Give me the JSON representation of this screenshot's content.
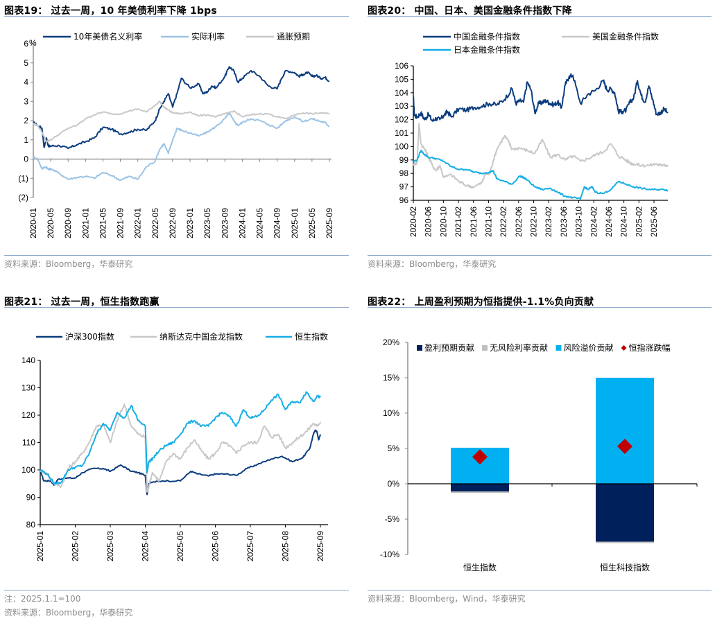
{
  "colors": {
    "navy": "#0b3c7d",
    "lightblue": "#9cc3e6",
    "gray": "#c8c8c8",
    "cyan": "#16aee6",
    "darknavy": "#00205b",
    "red": "#c00000",
    "rule": "#8eaacc"
  },
  "panels": [
    {
      "title": "图表19： 过去一周，10 年美债利率下降 1bps",
      "source": "资料来源：Bloomberg，华泰研究"
    },
    {
      "title": "图表20： 中国、日本、美国金融条件指数下降",
      "source": "资料来源：Bloomberg，华泰研究"
    },
    {
      "title": "图表21： 过去一周，恒生指数跑赢",
      "note": "注：2025.1.1=100",
      "source": "资料来源：Bloomberg，华泰研究"
    },
    {
      "title": "图表22： 上周盈利预期为恒指提供-1.1%负向贡献",
      "source": "资料来源：Bloomberg，Wind，华泰研究"
    }
  ],
  "chart_data": [
    {
      "type": "line",
      "title": "过去一周，10 年美债利率下降 1bps",
      "ylabel": "%",
      "ylim": [
        -2,
        6
      ],
      "yticks": [
        6,
        5,
        4,
        3,
        2,
        1,
        0,
        -1,
        -2
      ],
      "ytick_labels": [
        "6",
        "5",
        "4",
        "3",
        "2",
        "1",
        "0",
        "(1)",
        "(2)"
      ],
      "xticks": [
        "2020-01",
        "2020-05",
        "2020-09",
        "2021-01",
        "2021-05",
        "2021-09",
        "2022-01",
        "2022-05",
        "2022-09",
        "2023-01",
        "2023-05",
        "2023-09",
        "2024-01",
        "2024-05",
        "2024-09",
        "2025-01",
        "2025-05",
        "2025-09"
      ],
      "xrange_months": [
        0,
        68
      ],
      "legend_position": "top",
      "series": [
        {
          "name": "10年美债名义利率",
          "color": "#0b3c7d",
          "x": [
            0,
            1,
            2,
            2.5,
            3,
            3.5,
            4,
            6,
            8,
            10,
            12,
            14,
            16,
            18,
            20,
            22,
            24,
            26,
            28,
            29,
            30,
            31,
            32,
            33,
            34,
            36,
            38,
            39,
            40,
            41,
            42,
            44,
            45,
            46,
            47,
            48,
            50,
            52,
            54,
            56,
            57,
            58,
            60,
            61,
            62,
            63,
            64,
            65,
            66,
            67,
            68
          ],
          "y": [
            1.9,
            1.75,
            1.6,
            0.6,
            1.1,
            0.65,
            0.68,
            0.7,
            0.55,
            0.75,
            0.9,
            1.1,
            1.65,
            1.55,
            1.3,
            1.4,
            1.55,
            1.5,
            2.0,
            2.6,
            3.0,
            3.4,
            2.7,
            3.4,
            4.2,
            3.7,
            3.9,
            3.4,
            3.5,
            3.8,
            3.7,
            4.3,
            4.8,
            4.6,
            4.0,
            4.2,
            4.6,
            4.3,
            3.8,
            3.65,
            4.2,
            4.6,
            4.5,
            4.3,
            4.4,
            4.5,
            4.3,
            4.35,
            4.2,
            4.25,
            4.05
          ]
        },
        {
          "name": "实际利率",
          "color": "#9cc3e6",
          "x": [
            0,
            1,
            2,
            3,
            3.5,
            4,
            6,
            8,
            10,
            12,
            14,
            16,
            18,
            20,
            22,
            24,
            26,
            28,
            29,
            30,
            31,
            32,
            33,
            34,
            36,
            38,
            40,
            42,
            44,
            45,
            46,
            47,
            48,
            50,
            52,
            54,
            56,
            58,
            60,
            62,
            64,
            66,
            67,
            68
          ],
          "y": [
            0.1,
            0.0,
            -0.5,
            -0.4,
            -0.55,
            -0.5,
            -0.75,
            -1.05,
            -0.95,
            -0.9,
            -1.0,
            -0.7,
            -0.85,
            -1.1,
            -0.9,
            -1.05,
            -0.4,
            -0.1,
            0.5,
            0.8,
            0.3,
            1.0,
            1.6,
            1.5,
            1.35,
            1.2,
            1.4,
            1.7,
            2.1,
            2.4,
            2.0,
            1.75,
            1.9,
            2.1,
            2.0,
            1.8,
            1.6,
            2.0,
            2.2,
            1.95,
            2.1,
            1.95,
            1.9,
            1.7
          ]
        },
        {
          "name": "通胀预期",
          "color": "#c8c8c8",
          "x": [
            0,
            1,
            2,
            3,
            4,
            6,
            8,
            10,
            12,
            14,
            16,
            18,
            20,
            22,
            24,
            26,
            28,
            29,
            30,
            31,
            32,
            34,
            36,
            38,
            40,
            42,
            44,
            46,
            48,
            50,
            52,
            54,
            56,
            58,
            60,
            62,
            64,
            66,
            68
          ],
          "y": [
            1.85,
            1.75,
            1.4,
            0.9,
            1.0,
            1.3,
            1.6,
            1.75,
            2.1,
            2.3,
            2.45,
            2.35,
            2.35,
            2.5,
            2.6,
            2.45,
            2.8,
            3.0,
            2.7,
            2.55,
            2.4,
            2.35,
            2.45,
            2.25,
            2.3,
            2.2,
            2.35,
            2.5,
            2.2,
            2.3,
            2.35,
            2.35,
            2.2,
            2.1,
            2.3,
            2.4,
            2.35,
            2.4,
            2.35
          ]
        }
      ]
    },
    {
      "type": "line",
      "title": "中国、日本、美国金融条件指数下降",
      "ylim": [
        96,
        106
      ],
      "yticks": [
        106,
        105,
        104,
        103,
        102,
        101,
        100,
        99,
        98,
        97,
        96
      ],
      "xticks": [
        "2020-02",
        "2020-06",
        "2020-10",
        "2021-02",
        "2021-06",
        "2021-10",
        "2022-02",
        "2022-06",
        "2022-10",
        "2023-02",
        "2023-06",
        "2023-10",
        "2024-02",
        "2024-06",
        "2024-10",
        "2025-02",
        "2025-06"
      ],
      "xrange_months": [
        0,
        67
      ],
      "legend_position": "top",
      "series": [
        {
          "name": "中国金融条件指数",
          "color": "#0b3c7d",
          "x": [
            0,
            0.3,
            1,
            2,
            3,
            4,
            5,
            6,
            7,
            8,
            9,
            10,
            12,
            14,
            16,
            18,
            20,
            22,
            24,
            26,
            27,
            28,
            29,
            30,
            31,
            32,
            33,
            34,
            35,
            36,
            37,
            38,
            39,
            40,
            41,
            42,
            44,
            46,
            48,
            50,
            51,
            52,
            53,
            54,
            55,
            56,
            57,
            58,
            59,
            60,
            61,
            62,
            63,
            64,
            65,
            66,
            67
          ],
          "y": [
            103.7,
            102.3,
            102.2,
            102.5,
            102.0,
            102.4,
            101.9,
            102.1,
            102.0,
            102.3,
            102.6,
            102.2,
            102.8,
            102.7,
            102.9,
            103.0,
            103.2,
            103.1,
            103.5,
            104.3,
            103.2,
            103.4,
            103.3,
            104.8,
            104.2,
            102.5,
            103.2,
            103.3,
            103.4,
            103.2,
            103.1,
            103.3,
            102.9,
            104.6,
            105.2,
            105.3,
            103.2,
            103.9,
            104.2,
            104.9,
            104.2,
            104.3,
            104.0,
            102.6,
            102.6,
            102.7,
            103.3,
            103.6,
            104.9,
            103.8,
            103.3,
            104.5,
            103.5,
            102.4,
            102.5,
            102.8,
            102.5
          ]
        },
        {
          "name": "美国金融条件指数",
          "color": "#c8c8c8",
          "x": [
            0,
            1,
            1.5,
            2,
            3,
            4,
            5,
            6,
            7,
            8,
            10,
            12,
            14,
            16,
            18,
            19,
            20,
            21,
            22,
            24,
            25,
            26,
            28,
            30,
            32,
            34,
            36,
            38,
            40,
            42,
            44,
            46,
            48,
            50,
            52,
            54,
            56,
            57,
            58,
            60,
            62,
            64,
            65,
            66,
            67
          ],
          "y": [
            98.7,
            98.8,
            101.7,
            100.2,
            99.8,
            99.2,
            98.6,
            98.2,
            98.6,
            97.7,
            97.9,
            97.4,
            97.1,
            97.0,
            97.3,
            98.0,
            97.9,
            98.9,
            99.8,
            100.8,
            100.4,
            99.8,
            99.9,
            99.7,
            99.5,
            100.5,
            99.2,
            99.4,
            99.0,
            99.3,
            98.9,
            99.1,
            99.4,
            99.6,
            100.2,
            99.3,
            99.0,
            98.8,
            98.7,
            98.6,
            98.6,
            98.7,
            98.6,
            98.7,
            98.5
          ]
        },
        {
          "name": "日本金融条件指数",
          "color": "#16aee6",
          "x": [
            0,
            1,
            2,
            3,
            4,
            6,
            8,
            10,
            12,
            14,
            16,
            18,
            20,
            21,
            22,
            24,
            26,
            28,
            29,
            30,
            32,
            34,
            36,
            38,
            40,
            42,
            44,
            45,
            46,
            47,
            48,
            50,
            52,
            54,
            56,
            58,
            60,
            62,
            64,
            66,
            67
          ],
          "y": [
            98.9,
            99.0,
            99.7,
            99.4,
            99.2,
            99.1,
            98.9,
            98.5,
            98.3,
            98.3,
            98.1,
            98.0,
            98.1,
            98.2,
            97.6,
            97.4,
            97.2,
            97.8,
            97.7,
            97.5,
            97.0,
            96.8,
            96.9,
            96.6,
            96.3,
            96.2,
            96.1,
            97.0,
            96.8,
            97.0,
            96.6,
            96.5,
            96.8,
            97.4,
            97.2,
            97.0,
            96.9,
            96.8,
            96.8,
            96.8,
            96.75
          ]
        }
      ]
    },
    {
      "type": "line",
      "title": "过去一周，恒生指数跑赢",
      "ylim": [
        80,
        140
      ],
      "yticks": [
        140,
        130,
        120,
        110,
        100,
        90,
        80
      ],
      "xticks": [
        "2025-01",
        "2025-02",
        "2025-03",
        "2025-04",
        "2025-05",
        "2025-06",
        "2025-07",
        "2025-08",
        "2025-09"
      ],
      "xrange_months": [
        0,
        8
      ],
      "note": "2025.1.1=100",
      "legend_position": "top",
      "series": [
        {
          "name": "沪深300指数",
          "color": "#0b3c7d",
          "x": [
            0,
            0.1,
            0.3,
            0.4,
            0.5,
            0.7,
            1.0,
            1.2,
            1.5,
            1.8,
            2.0,
            2.3,
            2.6,
            2.8,
            3.0,
            3.05,
            3.1,
            3.2,
            3.5,
            4.0,
            4.3,
            4.5,
            4.8,
            5.0,
            5.3,
            5.6,
            5.9,
            6.2,
            6.6,
            6.9,
            7.2,
            7.5,
            7.7,
            7.8,
            7.85,
            7.9,
            7.95,
            8.0
          ],
          "y": [
            100,
            96,
            96,
            94.5,
            96.5,
            97,
            97,
            99,
            100.5,
            100.5,
            99.5,
            101.8,
            99.5,
            99,
            98,
            91,
            95,
            95.5,
            96,
            96,
            99.5,
            98.5,
            97.8,
            98.5,
            98.5,
            98,
            100.5,
            102,
            104,
            105,
            103,
            104.5,
            108,
            113,
            114.5,
            114,
            111,
            113
          ]
        },
        {
          "name": "纳斯达克中国金龙指数",
          "color": "#c8c8c8",
          "x": [
            0,
            0.2,
            0.4,
            0.6,
            0.8,
            1.0,
            1.2,
            1.4,
            1.6,
            1.8,
            2.0,
            2.2,
            2.4,
            2.6,
            2.8,
            3.0,
            3.05,
            3.1,
            3.2,
            3.4,
            3.6,
            3.8,
            4.0,
            4.2,
            4.4,
            4.6,
            4.8,
            5.0,
            5.2,
            5.4,
            5.6,
            5.8,
            6.0,
            6.2,
            6.4,
            6.6,
            6.8,
            7.0,
            7.2,
            7.4,
            7.6,
            7.8,
            7.9,
            8.0
          ],
          "y": [
            100,
            98.5,
            95,
            94,
            100.5,
            103,
            106,
            110,
            116,
            116.5,
            110,
            118,
            124,
            116,
            113,
            112,
            92,
            94,
            99,
            96,
            103,
            106,
            104,
            108,
            111,
            107,
            104,
            106,
            110,
            109,
            106,
            109,
            110,
            110,
            116,
            112,
            113,
            108,
            110,
            112,
            114,
            117,
            116,
            117.5
          ]
        },
        {
          "name": "恒生指数",
          "color": "#16aee6",
          "x": [
            0,
            0.2,
            0.4,
            0.6,
            0.8,
            1.0,
            1.2,
            1.4,
            1.6,
            1.8,
            2.0,
            2.2,
            2.4,
            2.6,
            2.8,
            3.0,
            3.05,
            3.1,
            3.2,
            3.4,
            3.6,
            3.8,
            4.0,
            4.2,
            4.4,
            4.6,
            4.8,
            5.0,
            5.2,
            5.4,
            5.6,
            5.8,
            6.0,
            6.2,
            6.4,
            6.6,
            6.8,
            7.0,
            7.2,
            7.4,
            7.6,
            7.8,
            7.9,
            8.0
          ],
          "y": [
            100,
            98.5,
            95,
            95.5,
            100,
            101,
            101.5,
            106,
            113,
            117,
            114.5,
            121,
            119,
            123.5,
            118,
            116,
            99,
            103,
            104,
            107,
            109,
            110,
            113,
            117,
            118,
            116,
            116,
            119,
            121,
            119.5,
            116,
            122,
            119,
            119.5,
            122,
            125.5,
            127.5,
            122,
            125,
            124.5,
            128.5,
            125,
            127,
            126.5
          ]
        }
      ]
    },
    {
      "type": "bar",
      "title": "上周盈利预期为恒指提供-1.1%负向贡献",
      "categories": [
        "恒生指数",
        "恒生科技指数"
      ],
      "ylim": [
        -10,
        20
      ],
      "yticks": [
        20,
        15,
        10,
        5,
        0,
        -5,
        -10
      ],
      "ytick_labels": [
        "20%",
        "15%",
        "10%",
        "5%",
        "0%",
        "-5%",
        "-10%"
      ],
      "legend_position": "top",
      "series": [
        {
          "name": "盈利预期贡献",
          "color": "#00205b",
          "marker": "square",
          "values": [
            -1.1,
            -8.2
          ]
        },
        {
          "name": "无风险利率贡献",
          "color": "#bfbfbf",
          "marker": "square",
          "values": [
            -0.1,
            -0.1
          ]
        },
        {
          "name": "风险溢价贡献",
          "color": "#00b0f0",
          "marker": "square",
          "values": [
            5.1,
            15.0
          ]
        },
        {
          "name": "恒指涨跌幅",
          "color": "#c00000",
          "marker": "diamond",
          "values": [
            3.8,
            5.3
          ]
        }
      ]
    }
  ]
}
